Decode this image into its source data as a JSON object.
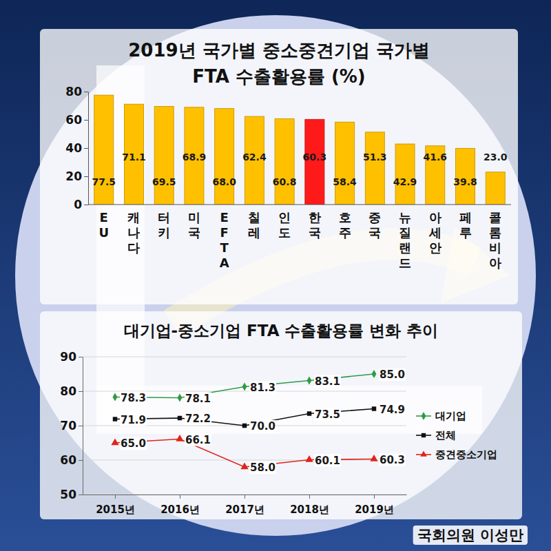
{
  "chart_data": [
    {
      "type": "bar",
      "title": "2019년 국가별 중소중견기업 국가별\nFTA 수출활용률 (%)",
      "categories": [
        "EU",
        "캐나다",
        "터키",
        "미국",
        "EFTA",
        "칠레",
        "인도",
        "한국",
        "호주",
        "중국",
        "뉴질랜드",
        "아세안",
        "페루",
        "콜롬비아"
      ],
      "values": [
        77.5,
        71.1,
        69.5,
        68.9,
        68.0,
        62.4,
        60.8,
        60.3,
        58.4,
        51.3,
        42.9,
        41.6,
        39.8,
        23.0
      ],
      "value_labels": [
        "77.5",
        "71.1",
        "69.5",
        "68.9",
        "68.0",
        "62.4",
        "60.8",
        "60.3",
        "58.4",
        "51.3",
        "42.9",
        "41.6",
        "39.8",
        "23.0"
      ],
      "colors": [
        "#ffc000",
        "#ffc000",
        "#ffc000",
        "#ffc000",
        "#ffc000",
        "#ffc000",
        "#ffc000",
        "#ff1a1a",
        "#ffc000",
        "#ffc000",
        "#ffc000",
        "#ffc000",
        "#ffc000",
        "#ffc000"
      ],
      "ylim": [
        0,
        80
      ],
      "yticks": [
        0,
        20,
        40,
        60,
        80
      ],
      "grid": false,
      "data_labels": true
    },
    {
      "type": "line",
      "title": "대기업-중소기업 FTA 수출활용률 변화 추이",
      "categories": [
        "2015년",
        "2016년",
        "2017년",
        "2018년",
        "2019년"
      ],
      "series": [
        {
          "name": "대기업",
          "color": "#2e9b47",
          "marker": "diamond",
          "values": [
            78.3,
            78.1,
            81.3,
            83.1,
            85.0
          ],
          "value_labels": [
            "78.3",
            "78.1",
            "81.3",
            "83.1",
            "85.0"
          ]
        },
        {
          "name": "전체",
          "color": "#111111",
          "marker": "square",
          "values": [
            71.9,
            72.2,
            70.0,
            73.5,
            74.9
          ],
          "value_labels": [
            "71.9",
            "72.2",
            "70.0",
            "73.5",
            "74.9"
          ]
        },
        {
          "name": "중견중소기업",
          "color": "#e0241b",
          "marker": "triangle",
          "values": [
            65.0,
            66.1,
            58.0,
            60.1,
            60.3
          ],
          "value_labels": [
            "65.0",
            "66.1",
            "58.0",
            "60.1",
            "60.3"
          ]
        }
      ],
      "ylim": [
        50,
        90
      ],
      "yticks": [
        50,
        60,
        70,
        80,
        90
      ],
      "grid": true,
      "legend": "right",
      "data_labels": true
    }
  ],
  "signature": "국회의원 이성만"
}
